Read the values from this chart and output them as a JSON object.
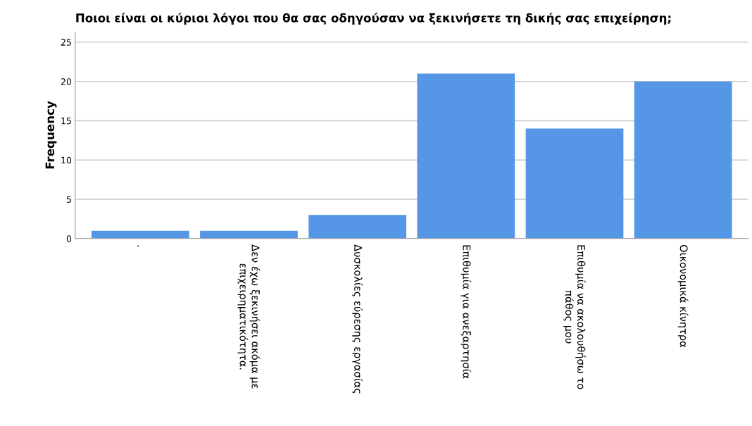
{
  "chart_data": {
    "type": "bar",
    "title": "Ποιοι είναι οι κύριοι λόγοι που θα σας οδηγούσαν να ξεκινήσετε τη δικής σας επιχείρηση;",
    "ylabel": "Frequency",
    "categories": [
      ".",
      "Δεν έχω ξεκινήσει ακόμα με\nεπιχειρηματικότητα.",
      "Δυσκολίες εύρεσης εργασίας",
      "Επιθυμία για ανεξαρτησία",
      "Επιθυμία να ακολουθήσω το\nπάθος μου",
      "Οικονομικά κίνητρα"
    ],
    "values": [
      1,
      1,
      3,
      21,
      14,
      20
    ],
    "color": "#5596e6",
    "ylim": [
      0,
      26.3
    ],
    "yticks": [
      0,
      5,
      10,
      15,
      20,
      25
    ],
    "grid": "y"
  }
}
